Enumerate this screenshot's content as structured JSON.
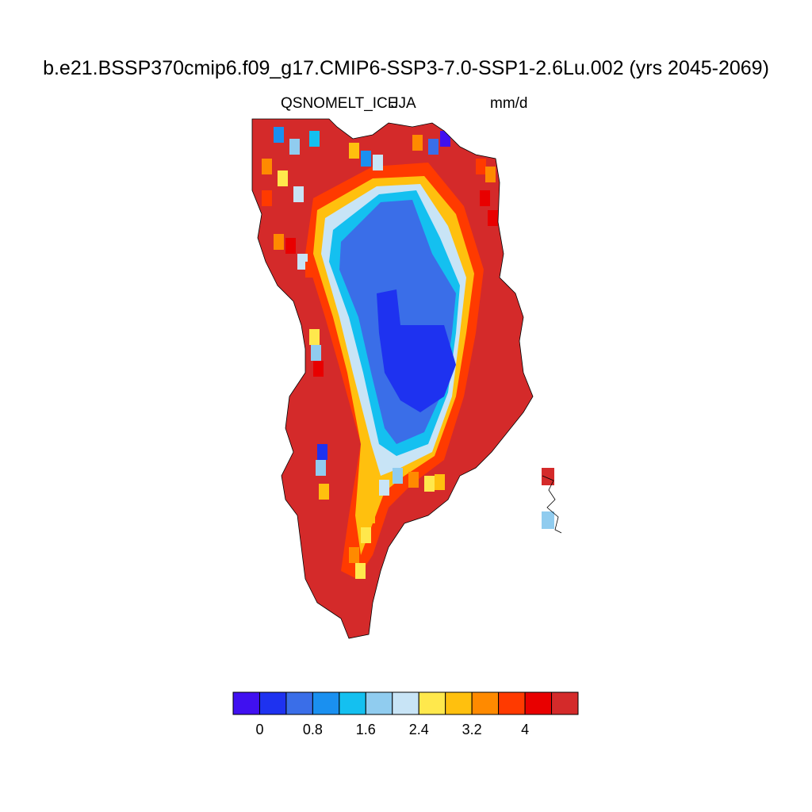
{
  "title": "b.e21.BSSP370cmip6.f09_g17.CMIP6-SSP3-7.0-SSP1-2.6Lu.002 (yrs 2045-2069)",
  "variable": "QSNOMELT_ICE",
  "season": "JJA",
  "units": "mm/d",
  "colorbar": {
    "colors": [
      "#4010f0",
      "#1e32f0",
      "#3a6ee8",
      "#1a90f0",
      "#14c0f0",
      "#90ccef",
      "#c8e4f6",
      "#ffe84c",
      "#ffc00e",
      "#ff8a00",
      "#ff3a00",
      "#e80000",
      "#d42a2a"
    ],
    "tick_labels": [
      "0",
      "0.8",
      "1.6",
      "2.4",
      "3.2",
      "4"
    ],
    "tick_values": [
      0,
      0.8,
      1.6,
      2.4,
      3.2,
      4.0
    ],
    "level_step": 0.4
  },
  "map_region": "Greenland",
  "field_description_levels": {
    "interior_min_level": 1,
    "margin_max_level": 12
  }
}
